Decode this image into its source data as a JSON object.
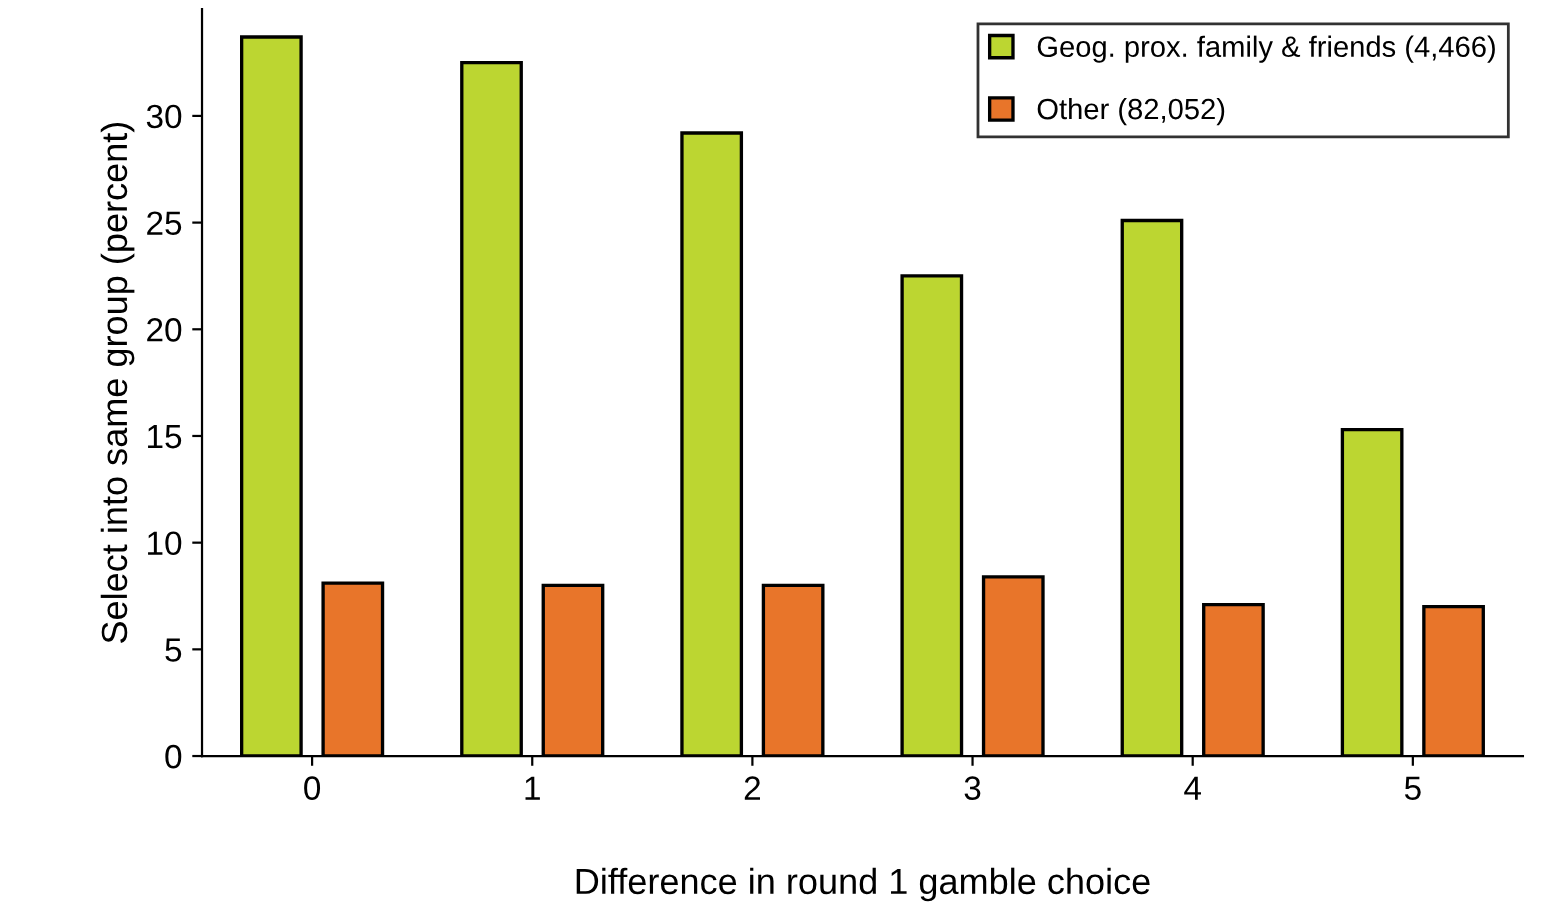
{
  "chart_data": {
    "type": "bar",
    "xlabel": "Difference in round 1 gamble choice",
    "ylabel": "Select into same group (percent)",
    "categories": [
      "0",
      "1",
      "2",
      "3",
      "4",
      "5"
    ],
    "series": [
      {
        "name": "Geog. prox. family & friends (4,466)",
        "color": "#bcd631",
        "values": [
          33.7,
          32.5,
          29.2,
          22.5,
          25.1,
          15.3
        ]
      },
      {
        "name": "Other (82,052)",
        "color": "#e8752a",
        "values": [
          8.1,
          8.0,
          8.0,
          8.4,
          7.1,
          7.0
        ]
      }
    ],
    "ylim": [
      0,
      35
    ],
    "yticks": [
      0,
      5,
      10,
      15,
      20,
      25,
      30
    ],
    "grid": false,
    "legend": "top right"
  }
}
